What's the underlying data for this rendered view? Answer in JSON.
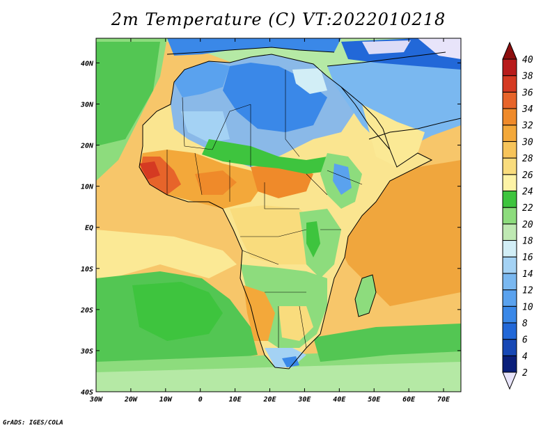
{
  "title": "2m Temperature (C) VT:2022010218",
  "credit": "GrADS: IGES/COLA",
  "map": {
    "lon_range": [
      -30,
      75
    ],
    "lat_range": [
      -40,
      46
    ],
    "lon_ticks": [
      {
        "value": -30,
        "label": "30W"
      },
      {
        "value": -20,
        "label": "20W"
      },
      {
        "value": -10,
        "label": "10W"
      },
      {
        "value": 0,
        "label": "0"
      },
      {
        "value": 10,
        "label": "10E"
      },
      {
        "value": 20,
        "label": "20E"
      },
      {
        "value": 30,
        "label": "30E"
      },
      {
        "value": 40,
        "label": "40E"
      },
      {
        "value": 50,
        "label": "50E"
      },
      {
        "value": 60,
        "label": "60E"
      },
      {
        "value": 70,
        "label": "70E"
      }
    ],
    "lat_ticks": [
      {
        "value": 40,
        "label": "40N"
      },
      {
        "value": 30,
        "label": "30N"
      },
      {
        "value": 20,
        "label": "20N"
      },
      {
        "value": 10,
        "label": "10N"
      },
      {
        "value": 0,
        "label": "EQ"
      },
      {
        "value": -10,
        "label": "10S"
      },
      {
        "value": -20,
        "label": "20S"
      },
      {
        "value": -30,
        "label": "30S"
      },
      {
        "value": -40,
        "label": "40S"
      }
    ],
    "colors": {
      "ocean_warm": "#f7c66a",
      "ocean_hot": "#f0a63d",
      "ocean_mild": "#fbe995",
      "ocean_green": "#53c653",
      "ocean_lightgreen": "#8ddc7d",
      "ocean_cool": "#b5e9a5",
      "ocean_paleblue": "#d0f0f5",
      "land_hot": "#e5542a",
      "land_orange": "#f08a2d",
      "land_green": "#5ac85a",
      "land_blue": "#6aa8e8",
      "land_lightblue": "#a7d4f3",
      "land_darkblue": "#2e6fd8",
      "land_lavender": "#dcdcf7",
      "land_yellow": "#fae590",
      "land_paleyellow": "#fdf3b8"
    }
  },
  "colorbar": {
    "levels": [
      2,
      4,
      6,
      8,
      10,
      12,
      14,
      16,
      18,
      20,
      22,
      24,
      26,
      28,
      30,
      32,
      34,
      36,
      38,
      40
    ],
    "colors": [
      "#e8e4fa",
      "#0a1f7a",
      "#1748b5",
      "#2268d8",
      "#3a88e8",
      "#5aa2ee",
      "#7ab8f0",
      "#a4d2f4",
      "#d2eef6",
      "#bfe9b3",
      "#8ddc7d",
      "#3ec43e",
      "#fdf3a6",
      "#f9dc7d",
      "#f7c45a",
      "#f3a83a",
      "#ef8a2a",
      "#e7642a",
      "#d53a22",
      "#b81b1b",
      "#8c0e0e"
    ]
  }
}
